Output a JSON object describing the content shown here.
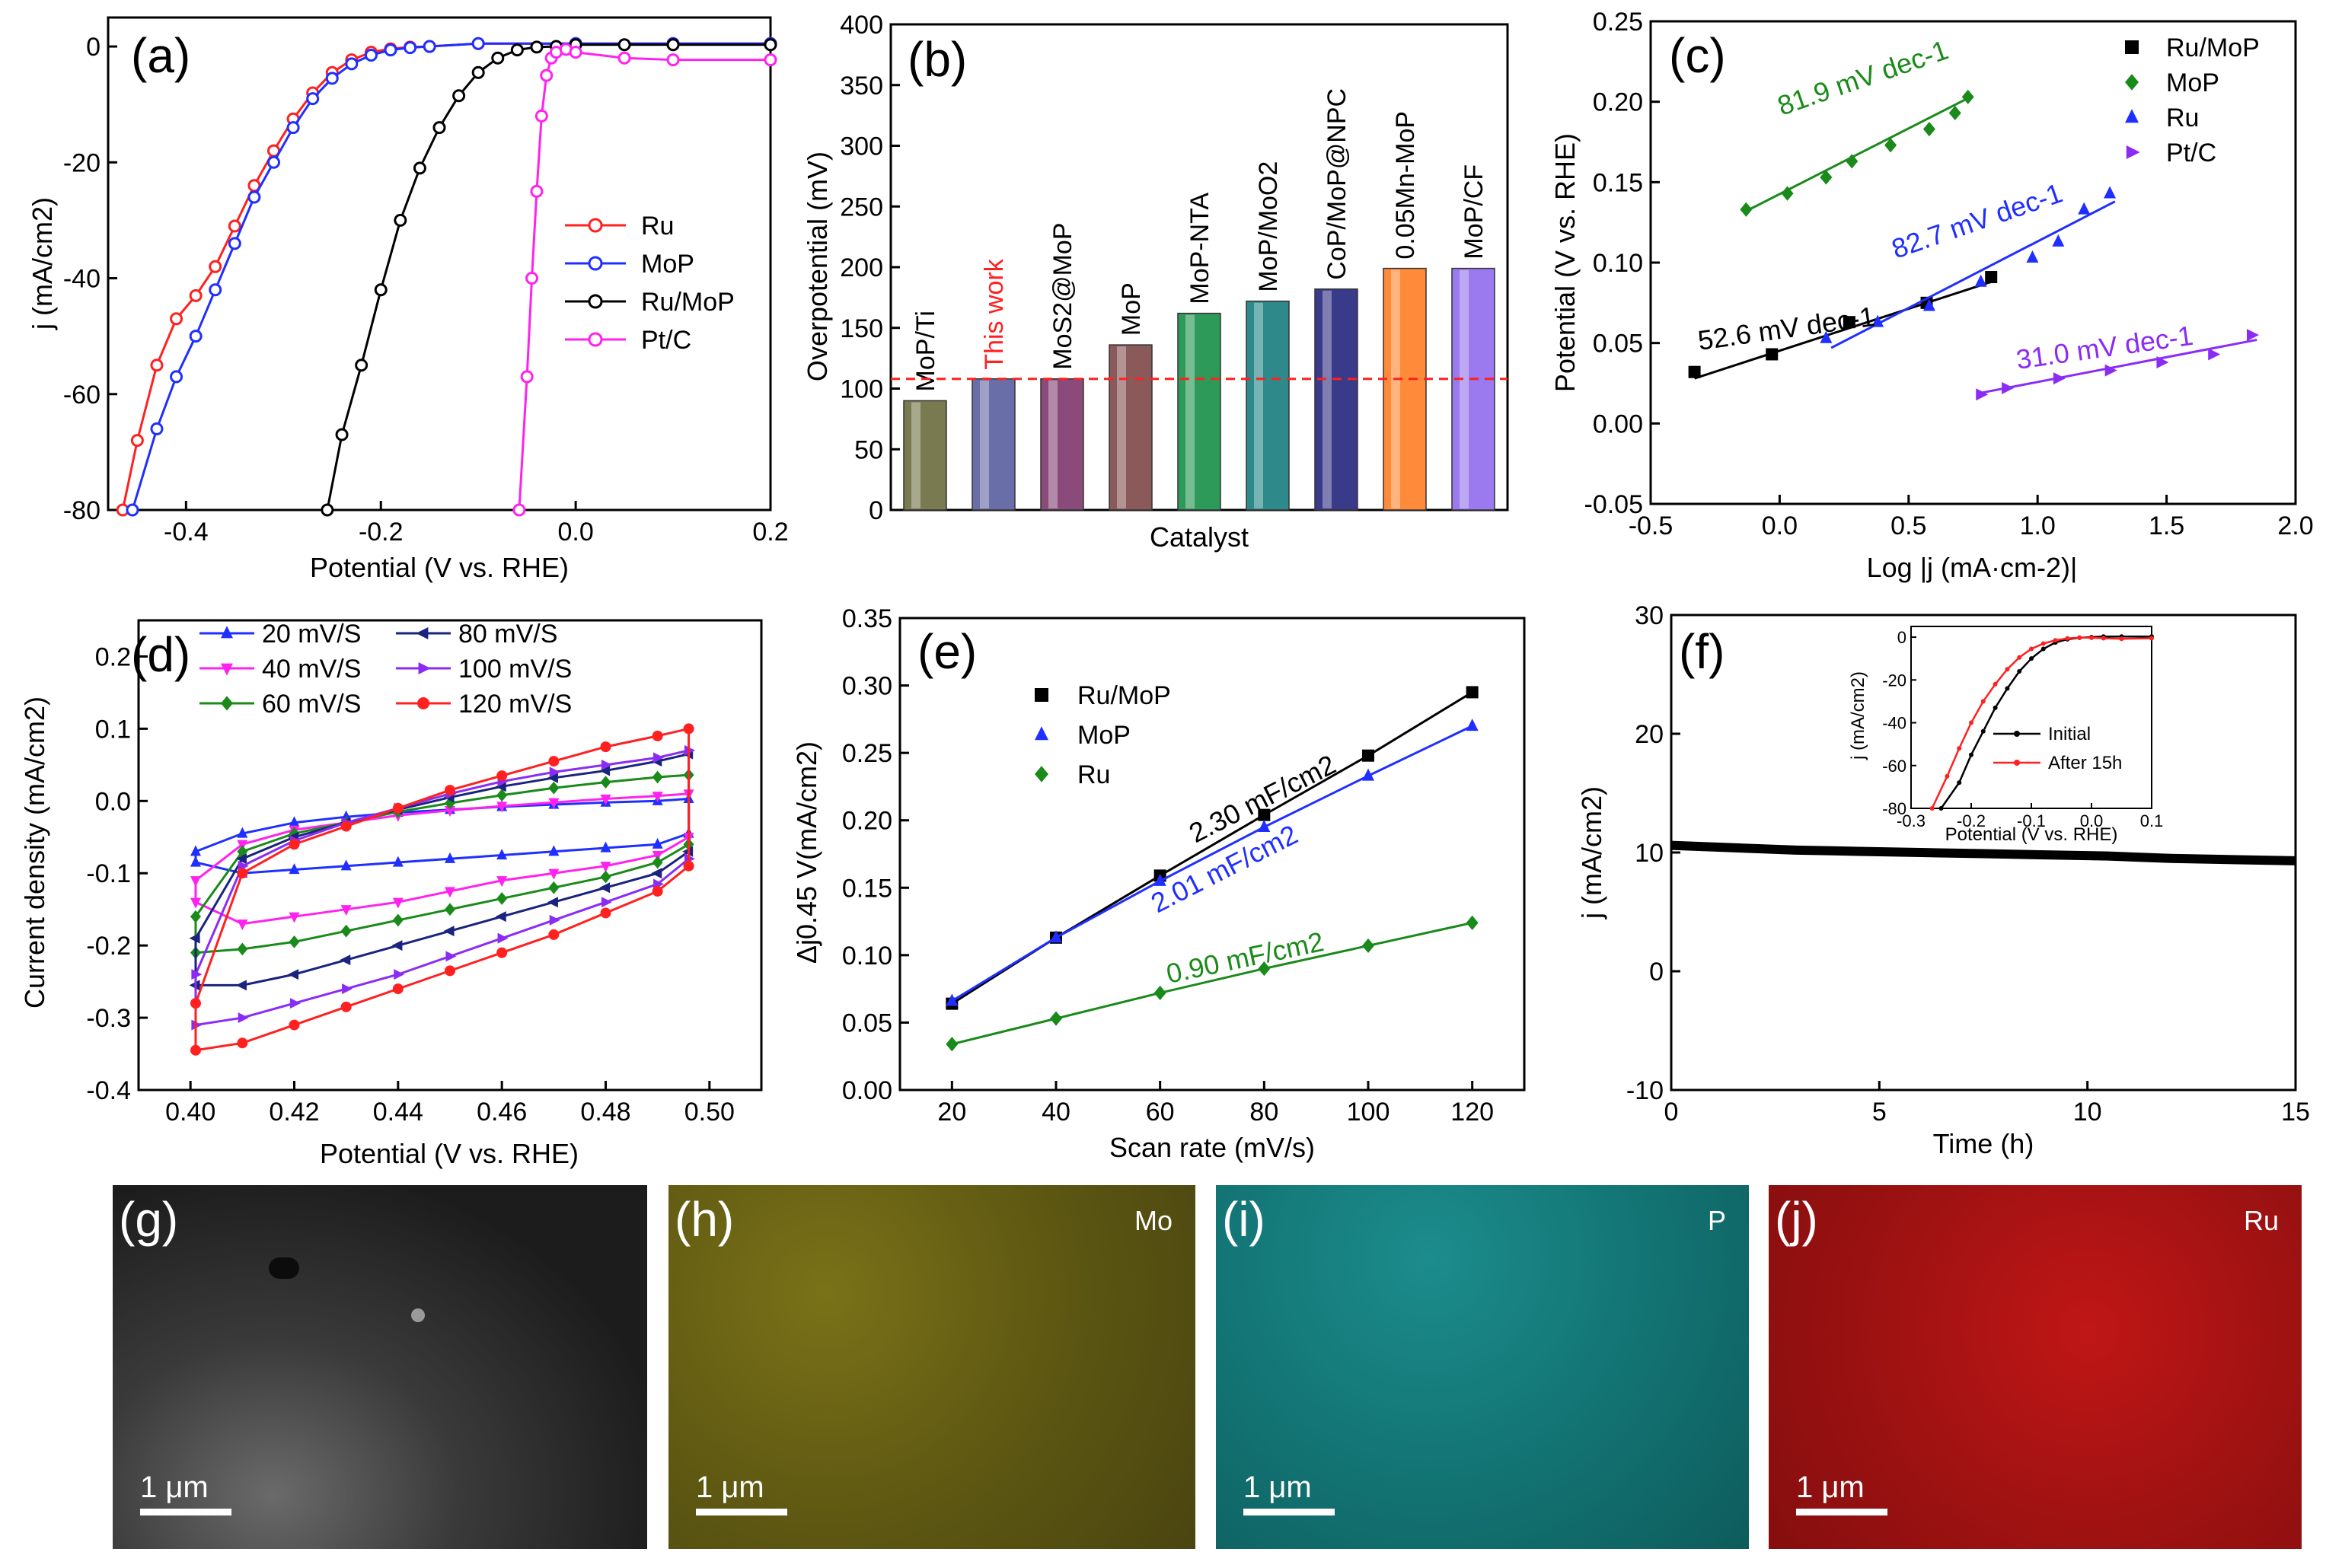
{
  "colors": {
    "black": "#000000",
    "red": "#ff2020",
    "blue": "#1f2fff",
    "green": "#1a8a1a",
    "magenta": "#ff22ee",
    "navy": "#1a237e",
    "purple": "#8a2be2",
    "violet": "#8b2cf5",
    "mo": "#b0a81c",
    "p": "#23b0b0",
    "ru": "#c81818"
  },
  "chart_data": [
    {
      "id": "a",
      "panel_label": "(a)",
      "type": "line",
      "xlabel": "Potential (V vs. RHE)",
      "ylabel": "j (mA/cm2)",
      "xlim": [
        -0.48,
        0.2
      ],
      "ylim": [
        -80,
        5
      ],
      "xticks": [
        -0.4,
        -0.2,
        0.0,
        0.2
      ],
      "xtick_labels": [
        "-0.4",
        "-0.2",
        "0.0",
        "0.2"
      ],
      "yticks": [
        0,
        -20,
        -40,
        -60,
        -80
      ],
      "ytick_labels": [
        "0",
        "-20",
        "-40",
        "-60",
        "-80"
      ],
      "legend": [
        "Ru",
        "MoP",
        "Ru/MoP",
        "Pt/C"
      ],
      "series": [
        {
          "name": "Ru",
          "color": "#ff2020",
          "marker": "circle-open",
          "x": [
            -0.465,
            -0.45,
            -0.43,
            -0.41,
            -0.39,
            -0.37,
            -0.35,
            -0.33,
            -0.31,
            -0.29,
            -0.27,
            -0.25,
            -0.23,
            -0.21,
            -0.19,
            -0.17,
            -0.15,
            -0.1,
            0.0,
            0.1,
            0.2
          ],
          "y": [
            -80,
            -68,
            -55,
            -47,
            -43,
            -38,
            -31,
            -24,
            -18,
            -12.5,
            -8,
            -4.5,
            -2.3,
            -1,
            -0.4,
            -0.1,
            0,
            0.5,
            0.5,
            0.5,
            0.5
          ]
        },
        {
          "name": "MoP",
          "color": "#1f2fff",
          "marker": "circle-open",
          "x": [
            -0.455,
            -0.43,
            -0.41,
            -0.39,
            -0.37,
            -0.35,
            -0.33,
            -0.31,
            -0.29,
            -0.27,
            -0.25,
            -0.23,
            -0.21,
            -0.19,
            -0.17,
            -0.15,
            -0.1,
            0.0,
            0.1,
            0.2
          ],
          "y": [
            -80,
            -66,
            -57,
            -50,
            -42,
            -34,
            -26,
            -20,
            -14,
            -9,
            -5.5,
            -3,
            -1.5,
            -0.6,
            -0.2,
            0,
            0.5,
            0.5,
            0.5,
            0.5
          ]
        },
        {
          "name": "Ru/MoP",
          "color": "#000000",
          "marker": "circle-open",
          "x": [
            -0.255,
            -0.24,
            -0.22,
            -0.2,
            -0.18,
            -0.16,
            -0.14,
            -0.12,
            -0.1,
            -0.08,
            -0.06,
            -0.04,
            -0.02,
            0.0,
            0.05,
            0.1,
            0.2
          ],
          "y": [
            -80,
            -67,
            -55,
            -42,
            -30,
            -21,
            -14,
            -8.5,
            -4.5,
            -2,
            -0.6,
            -0.1,
            0,
            0.3,
            0.3,
            0.3,
            0.3
          ]
        },
        {
          "name": "Pt/C",
          "color": "#ff22ee",
          "marker": "circle-open",
          "x": [
            -0.058,
            -0.05,
            -0.045,
            -0.04,
            -0.035,
            -0.03,
            -0.025,
            -0.02,
            -0.01,
            0.0,
            0.05,
            0.1,
            0.2
          ],
          "y": [
            -80,
            -57,
            -40,
            -25,
            -12,
            -5,
            -2,
            -1,
            -0.5,
            -1,
            -2,
            -2.3,
            -2.3
          ]
        }
      ]
    },
    {
      "id": "b",
      "panel_label": "(b)",
      "type": "bar",
      "xlabel": "Catalyst",
      "ylabel": "Overpotential (mV)",
      "ylim": [
        0,
        400
      ],
      "yticks": [
        0,
        50,
        100,
        150,
        200,
        250,
        300,
        350,
        400
      ],
      "ytick_labels": [
        "0",
        "50",
        "100",
        "150",
        "200",
        "250",
        "300",
        "350",
        "400"
      ],
      "categories": [
        "MoP/Ti",
        "This work",
        "MoS2@MoP",
        "MoP",
        "MoP-NTA",
        "MoP/MoO2",
        "CoP/MoP@NPC",
        "0.05Mn-MoP",
        "MoP/CF"
      ],
      "values": [
        90,
        108,
        108,
        136,
        162,
        172,
        182,
        199,
        199
      ],
      "bar_colors": [
        "#7a7a50",
        "#6a6ea8",
        "#8a4a7a",
        "#8a5a5a",
        "#2e9a5a",
        "#2e8a8a",
        "#3a3a8a",
        "#ff8a3a",
        "#9a7aee"
      ],
      "highlight_category": "This work",
      "highlight_color": "#ff2020",
      "reference_line": 108
    },
    {
      "id": "c",
      "panel_label": "(c)",
      "type": "scatter",
      "xlabel": "Log |j (mA·cm-2)|",
      "ylabel": "Potential (V vs. RHE)",
      "xlim": [
        -0.5,
        2.0
      ],
      "ylim": [
        -0.05,
        0.25
      ],
      "xticks": [
        -0.5,
        0.0,
        0.5,
        1.0,
        1.5,
        2.0
      ],
      "xtick_labels": [
        "-0.5",
        "0.0",
        "0.5",
        "1.0",
        "1.5",
        "2.0"
      ],
      "yticks": [
        -0.05,
        0.0,
        0.05,
        0.1,
        0.15,
        0.2,
        0.25
      ],
      "ytick_labels": [
        "-0.05",
        "0.00",
        "0.05",
        "0.10",
        "0.15",
        "0.20",
        "0.25"
      ],
      "legend": [
        "Ru/MoP",
        "MoP",
        "Ru",
        "Pt/C"
      ],
      "series": [
        {
          "name": "Ru/MoP",
          "color": "#000000",
          "marker": "square",
          "x": [
            -0.33,
            -0.03,
            0.27,
            0.57,
            0.82
          ],
          "y": [
            0.032,
            0.043,
            0.063,
            0.075,
            0.091
          ],
          "fit_x": [
            -0.33,
            0.82
          ],
          "fit_y": [
            0.028,
            0.088
          ]
        },
        {
          "name": "MoP",
          "color": "#1a8a1a",
          "marker": "diamond",
          "x": [
            -0.13,
            0.03,
            0.18,
            0.28,
            0.43,
            0.58,
            0.68,
            0.73
          ],
          "y": [
            0.133,
            0.143,
            0.153,
            0.163,
            0.173,
            0.183,
            0.193,
            0.203
          ],
          "fit_x": [
            -0.13,
            0.74
          ],
          "fit_y": [
            0.132,
            0.203
          ]
        },
        {
          "name": "Ru",
          "color": "#1f2fff",
          "marker": "triangle-up",
          "x": [
            0.18,
            0.38,
            0.58,
            0.78,
            0.98,
            1.08,
            1.18,
            1.28
          ],
          "y": [
            0.053,
            0.063,
            0.073,
            0.088,
            0.103,
            0.113,
            0.133,
            0.143
          ],
          "fit_x": [
            0.2,
            1.3
          ],
          "fit_y": [
            0.047,
            0.138
          ]
        },
        {
          "name": "Pt/C",
          "color": "#8b2cf5",
          "marker": "triangle-right",
          "x": [
            0.78,
            0.88,
            1.08,
            1.28,
            1.48,
            1.68,
            1.83
          ],
          "y": [
            0.018,
            0.022,
            0.028,
            0.033,
            0.038,
            0.043,
            0.055
          ],
          "fit_x": [
            0.78,
            1.85
          ],
          "fit_y": [
            0.019,
            0.052
          ]
        }
      ],
      "annotations": [
        {
          "text": "81.9 mV dec-1",
          "color": "#1a8a1a",
          "series": "MoP"
        },
        {
          "text": "82.7 mV dec-1",
          "color": "#1f2fff",
          "series": "Ru"
        },
        {
          "text": "52.6 mV dec-1",
          "color": "#000000",
          "series": "Ru/MoP"
        },
        {
          "text": "31.0 mV dec-1",
          "color": "#8b2cf5",
          "series": "Pt/C"
        }
      ]
    },
    {
      "id": "d",
      "panel_label": "(d)",
      "type": "line",
      "xlabel": "Potential (V vs. RHE)",
      "ylabel": "Current density (mA/cm2)",
      "xlim": [
        0.39,
        0.51
      ],
      "ylim": [
        -0.4,
        0.25
      ],
      "xticks": [
        0.4,
        0.42,
        0.44,
        0.46,
        0.48,
        0.5
      ],
      "xtick_labels": [
        "0.40",
        "0.42",
        "0.44",
        "0.46",
        "0.48",
        "0.50"
      ],
      "yticks": [
        -0.4,
        -0.3,
        -0.2,
        -0.1,
        0.0,
        0.1,
        0.2
      ],
      "ytick_labels": [
        "-0.4",
        "-0.3",
        "-0.2",
        "-0.1",
        "0.0",
        "0.1",
        "0.2"
      ],
      "legend": [
        "20 mV/S",
        "80 mV/S",
        "40 mV/S",
        "100 mV/S",
        "60 mV/S",
        "120 mV/S"
      ],
      "series": [
        {
          "name": "20 mV/S",
          "color": "#1f2fff",
          "marker": "triangle-up",
          "upper": [
            -0.07,
            -0.045,
            -0.03,
            -0.022,
            -0.016,
            -0.012,
            -0.008,
            -0.005,
            -0.002,
            0.0,
            0.003
          ],
          "lower": [
            -0.085,
            -0.1,
            -0.095,
            -0.09,
            -0.085,
            -0.08,
            -0.075,
            -0.07,
            -0.065,
            -0.06,
            -0.045
          ]
        },
        {
          "name": "40 mV/S",
          "color": "#ff22ee",
          "marker": "triangle-down",
          "upper": [
            -0.11,
            -0.06,
            -0.04,
            -0.03,
            -0.02,
            -0.013,
            -0.007,
            -0.002,
            0.003,
            0.007,
            0.01
          ],
          "lower": [
            -0.14,
            -0.17,
            -0.16,
            -0.15,
            -0.14,
            -0.125,
            -0.11,
            -0.1,
            -0.09,
            -0.075,
            -0.05
          ]
        },
        {
          "name": "60 mV/S",
          "color": "#1a8a1a",
          "marker": "diamond",
          "upper": [
            -0.16,
            -0.07,
            -0.045,
            -0.03,
            -0.015,
            -0.003,
            0.008,
            0.018,
            0.026,
            0.033,
            0.036
          ],
          "lower": [
            -0.21,
            -0.205,
            -0.195,
            -0.18,
            -0.165,
            -0.15,
            -0.135,
            -0.12,
            -0.105,
            -0.085,
            -0.06
          ]
        },
        {
          "name": "80 mV/S",
          "color": "#1a237e",
          "marker": "triangle-left",
          "upper": [
            -0.19,
            -0.08,
            -0.05,
            -0.03,
            -0.012,
            0.005,
            0.02,
            0.032,
            0.042,
            0.055,
            0.065
          ],
          "lower": [
            -0.255,
            -0.255,
            -0.24,
            -0.22,
            -0.2,
            -0.18,
            -0.16,
            -0.14,
            -0.12,
            -0.1,
            -0.07
          ]
        },
        {
          "name": "100 mV/S",
          "color": "#8b2cf5",
          "marker": "triangle-right",
          "upper": [
            -0.24,
            -0.09,
            -0.055,
            -0.03,
            -0.01,
            0.01,
            0.027,
            0.04,
            0.05,
            0.06,
            0.07
          ],
          "lower": [
            -0.31,
            -0.3,
            -0.28,
            -0.26,
            -0.24,
            -0.215,
            -0.19,
            -0.165,
            -0.14,
            -0.115,
            -0.08
          ]
        },
        {
          "name": "120 mV/S",
          "color": "#ff2020",
          "marker": "circle",
          "upper": [
            -0.28,
            -0.1,
            -0.06,
            -0.035,
            -0.01,
            0.015,
            0.035,
            0.055,
            0.075,
            0.09,
            0.1
          ],
          "lower": [
            -0.345,
            -0.335,
            -0.31,
            -0.285,
            -0.26,
            -0.235,
            -0.21,
            -0.185,
            -0.155,
            -0.125,
            -0.09
          ]
        }
      ],
      "x_points": [
        0.401,
        0.41,
        0.42,
        0.43,
        0.44,
        0.45,
        0.46,
        0.47,
        0.48,
        0.49,
        0.496
      ]
    },
    {
      "id": "e",
      "panel_label": "(e)",
      "type": "scatter",
      "xlabel": "Scan rate (mV/s)",
      "ylabel": "Δj0.45 V(mA/cm2)",
      "xlim": [
        10,
        130
      ],
      "ylim": [
        0.0,
        0.35
      ],
      "xticks": [
        20,
        40,
        60,
        80,
        100,
        120
      ],
      "xtick_labels": [
        "20",
        "40",
        "60",
        "80",
        "100",
        "120"
      ],
      "yticks": [
        0.0,
        0.05,
        0.1,
        0.15,
        0.2,
        0.25,
        0.3,
        0.35
      ],
      "ytick_labels": [
        "0.00",
        "0.05",
        "0.10",
        "0.15",
        "0.20",
        "0.25",
        "0.30",
        "0.35"
      ],
      "legend": [
        "Ru/MoP",
        "MoP",
        "Ru"
      ],
      "x": [
        20,
        40,
        60,
        80,
        100,
        120
      ],
      "series": [
        {
          "name": "Ru/MoP",
          "color": "#000000",
          "marker": "square",
          "values": [
            0.064,
            0.113,
            0.159,
            0.204,
            0.248,
            0.295
          ]
        },
        {
          "name": "MoP",
          "color": "#1f2fff",
          "marker": "triangle-up",
          "values": [
            0.066,
            0.113,
            0.155,
            0.195,
            0.233,
            0.27
          ]
        },
        {
          "name": "Ru",
          "color": "#1a8a1a",
          "marker": "diamond",
          "values": [
            0.034,
            0.053,
            0.072,
            0.09,
            0.107,
            0.124
          ]
        }
      ],
      "annotations": [
        {
          "text": "2.30 mF/cm2",
          "color": "#000000"
        },
        {
          "text": "2.01 mF/cm2",
          "color": "#1f2fff"
        },
        {
          "text": "0.90 mF/cm2",
          "color": "#1a8a1a"
        }
      ]
    },
    {
      "id": "f",
      "panel_label": "(f)",
      "type": "line",
      "xlabel": "Time (h)",
      "ylabel": "j (mA/cm2)",
      "xlim": [
        0,
        15
      ],
      "ylim": [
        -10,
        30
      ],
      "xticks": [
        0,
        5,
        10,
        15
      ],
      "xtick_labels": [
        "0",
        "5",
        "10",
        "15"
      ],
      "yticks": [
        -10,
        0,
        10,
        20,
        30
      ],
      "ytick_labels": [
        "-10",
        "0",
        "10",
        "20",
        "30"
      ],
      "series": [
        {
          "name": "j",
          "color": "#000000",
          "x": [
            0,
            1.5,
            3,
            4.5,
            6,
            7.5,
            9,
            10.5,
            12,
            13.5,
            15
          ],
          "y": [
            10.6,
            10.4,
            10.2,
            10.1,
            10.0,
            9.9,
            9.8,
            9.7,
            9.5,
            9.4,
            9.3
          ]
        }
      ],
      "inset": {
        "xlabel": "Potential (V vs. RHE)",
        "ylabel": "j (mA/cm2)",
        "xlim": [
          -0.3,
          0.1
        ],
        "ylim": [
          -80,
          5
        ],
        "xticks": [
          -0.3,
          -0.2,
          -0.1,
          0.0,
          0.1
        ],
        "xtick_labels": [
          "-0.3",
          "-0.2",
          "-0.1",
          "0.0",
          "0.1"
        ],
        "yticks": [
          0,
          -20,
          -40,
          -60,
          -80
        ],
        "ytick_labels": [
          "0",
          "-20",
          "-40",
          "-60",
          "-80"
        ],
        "legend": [
          "Initial",
          "After 15h"
        ],
        "series": [
          {
            "name": "Initial",
            "color": "#000000",
            "x": [
              -0.25,
              -0.22,
              -0.2,
              -0.18,
              -0.16,
              -0.14,
              -0.12,
              -0.1,
              -0.08,
              -0.06,
              -0.04,
              -0.02,
              0.0,
              0.02,
              0.05,
              0.1
            ],
            "y": [
              -80,
              -68,
              -55,
              -44,
              -33,
              -24,
              -16,
              -10,
              -5.5,
              -2.5,
              -1,
              -0.3,
              0,
              0.3,
              0.3,
              0.3
            ]
          },
          {
            "name": "After 15h",
            "color": "#ff2020",
            "x": [
              -0.265,
              -0.24,
              -0.22,
              -0.2,
              -0.18,
              -0.16,
              -0.14,
              -0.12,
              -0.1,
              -0.08,
              -0.06,
              -0.04,
              -0.02,
              0.0,
              0.02,
              0.05,
              0.1
            ],
            "y": [
              -80,
              -65,
              -52,
              -40,
              -30,
              -22,
              -15,
              -9.5,
              -5.5,
              -3,
              -1.5,
              -0.6,
              -0.2,
              -0.3,
              -0.5,
              -0.8,
              -0.5
            ]
          }
        ]
      }
    }
  ],
  "micrographs": [
    {
      "label": "(g)",
      "element": "",
      "scale_bar": "1 μm",
      "color": "#303030"
    },
    {
      "label": "(h)",
      "element": "Mo",
      "scale_bar": "1 μm",
      "color": "#b0a81c"
    },
    {
      "label": "(i)",
      "element": "P",
      "scale_bar": "1 μm",
      "color": "#23b0b0"
    },
    {
      "label": "(j)",
      "element": "Ru",
      "scale_bar": "1 μm",
      "color": "#c81818"
    }
  ]
}
